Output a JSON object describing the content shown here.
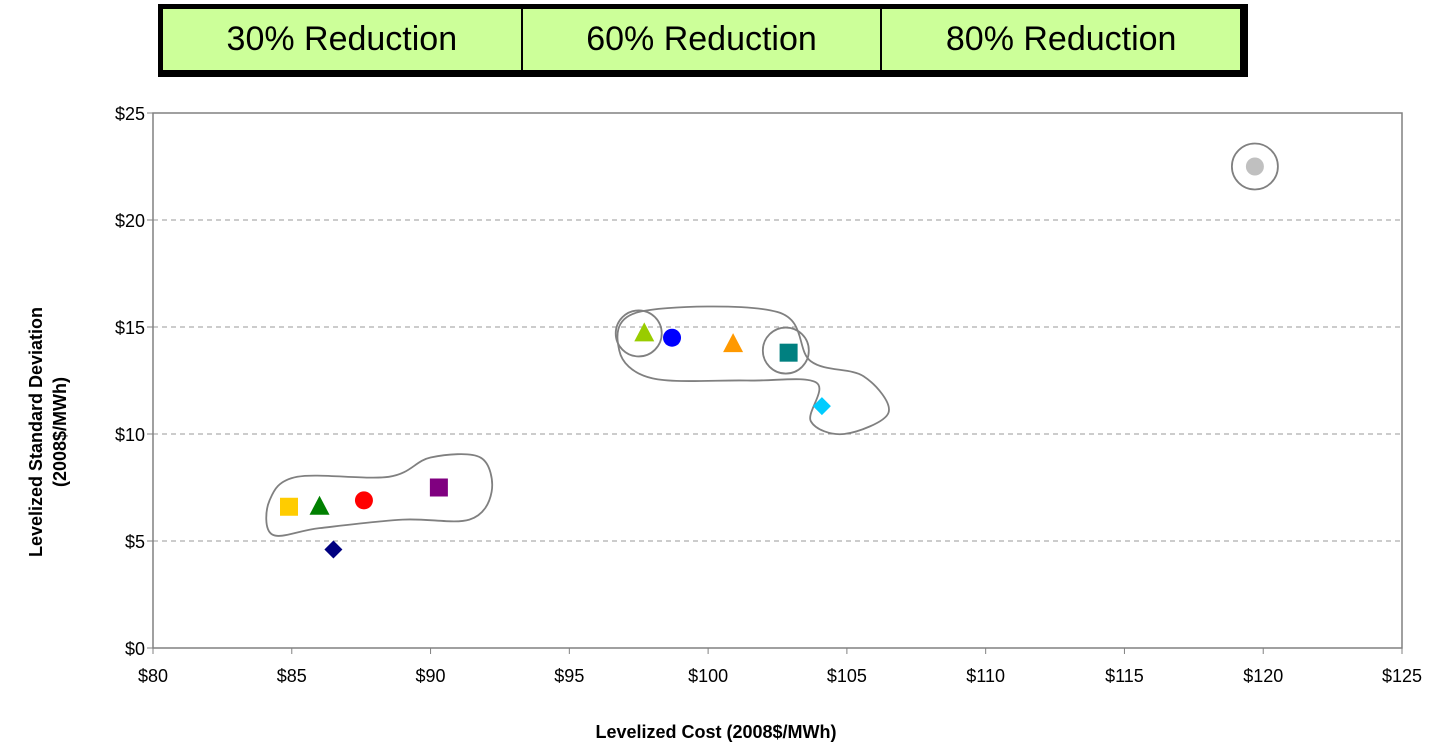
{
  "header": {
    "cells": [
      "30% Reduction",
      "60% Reduction",
      "80% Reduction"
    ]
  },
  "chart_data": {
    "type": "scatter",
    "title": "",
    "xlabel": "Levelized Cost (2008$/MWh)",
    "ylabel_line1": "Levelized Standard Deviation",
    "ylabel_line2": "(2008$/MWh)",
    "xlim": [
      80,
      125
    ],
    "ylim": [
      0,
      25
    ],
    "x_ticks": [
      80,
      85,
      90,
      95,
      100,
      105,
      110,
      115,
      120,
      125
    ],
    "y_ticks": [
      0,
      5,
      10,
      15,
      20,
      25
    ],
    "x_tick_labels": [
      "$80",
      "$85",
      "$90",
      "$95",
      "$100",
      "$105",
      "$110",
      "$115",
      "$120",
      "$125"
    ],
    "y_tick_labels": [
      "$0",
      "$5",
      "$10",
      "$15",
      "$20",
      "$25"
    ],
    "grid": "horizontal dashed",
    "legend": "none",
    "points": [
      {
        "x": 84.9,
        "y": 6.6,
        "marker": "square",
        "color": "#ffcc00"
      },
      {
        "x": 86.0,
        "y": 6.6,
        "marker": "triangle",
        "color": "#008000"
      },
      {
        "x": 86.5,
        "y": 4.6,
        "marker": "diamond",
        "color": "#000080"
      },
      {
        "x": 87.6,
        "y": 6.9,
        "marker": "circle",
        "color": "#ff0000"
      },
      {
        "x": 90.3,
        "y": 7.5,
        "marker": "square",
        "color": "#800080"
      },
      {
        "x": 97.7,
        "y": 14.7,
        "marker": "triangle",
        "color": "#99cc00"
      },
      {
        "x": 98.7,
        "y": 14.5,
        "marker": "circle",
        "color": "#0000ff"
      },
      {
        "x": 100.9,
        "y": 14.2,
        "marker": "triangle",
        "color": "#ff9900"
      },
      {
        "x": 102.9,
        "y": 13.8,
        "marker": "square",
        "color": "#008080"
      },
      {
        "x": 104.1,
        "y": 11.3,
        "marker": "diamond",
        "color": "#00ccff"
      },
      {
        "x": 119.7,
        "y": 22.5,
        "marker": "circle",
        "color": "#c0c0c0"
      }
    ],
    "highlight_circles": [
      {
        "x": 97.5,
        "y": 14.7
      },
      {
        "x": 102.8,
        "y": 13.9
      },
      {
        "x": 119.7,
        "y": 22.5
      }
    ],
    "cluster_outlines": [
      [
        [
          84.2,
          6.9
        ],
        [
          85.2,
          8.0
        ],
        [
          88.5,
          8.0
        ],
        [
          90.0,
          8.9
        ],
        [
          91.8,
          8.9
        ],
        [
          92.2,
          7.3
        ],
        [
          91.4,
          6.0
        ],
        [
          89.0,
          6.0
        ],
        [
          86.0,
          5.6
        ],
        [
          84.3,
          5.3
        ]
      ],
      [
        [
          96.8,
          13.9
        ],
        [
          97.5,
          15.7
        ],
        [
          102.5,
          15.7
        ],
        [
          103.7,
          13.4
        ],
        [
          105.6,
          12.7
        ],
        [
          106.5,
          11.0
        ],
        [
          104.9,
          10.0
        ],
        [
          103.7,
          10.6
        ],
        [
          103.9,
          12.4
        ],
        [
          101.4,
          12.5
        ],
        [
          98.0,
          12.6
        ]
      ]
    ]
  }
}
